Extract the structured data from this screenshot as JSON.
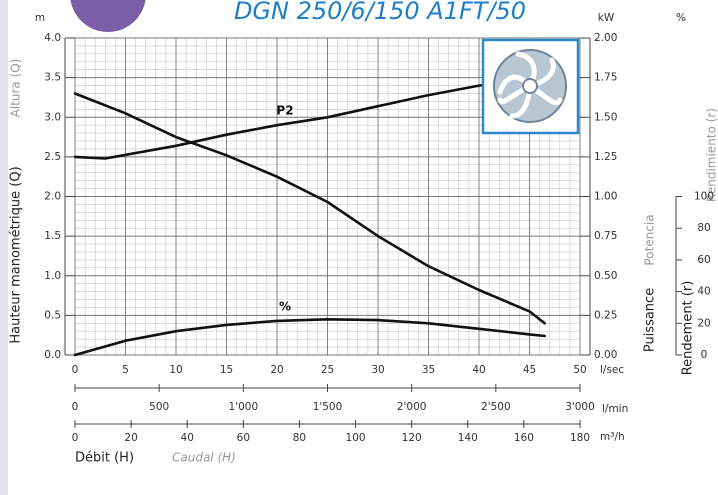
{
  "chart_data": {
    "type": "line",
    "title": "DGN 250/6/150 A1FT/50",
    "y_unit": "m",
    "y2_unit": "kW",
    "y3_unit": "%",
    "y_label": "Hauteur manométrique (Q)",
    "y_label_alt": "Altura (Q)",
    "y2_label": "Puissance",
    "y2_label_alt": "Potencia",
    "y3_label": "Rendement (r)",
    "y3_label_alt": "Rendimiento (r)",
    "x_label": "Débit (H)",
    "x_label_alt": "Caudal (H)",
    "x_unit": "l/sec",
    "x2_unit": "l/min",
    "x3_unit": "m³/h",
    "xlim": [
      0,
      50
    ],
    "xticks": [
      0,
      5,
      10,
      15,
      20,
      25,
      30,
      35,
      40,
      45,
      50
    ],
    "x2lim": [
      0,
      3000
    ],
    "x2ticks": [
      0,
      500,
      {
        "value": 1000,
        "label": "1'000"
      },
      {
        "value": 1500,
        "label": "1'500"
      },
      {
        "value": 2000,
        "label": "2'000"
      },
      {
        "value": 2500,
        "label": "2'500"
      },
      {
        "value": 3000,
        "label": "3'000"
      }
    ],
    "x3lim": [
      0,
      180
    ],
    "x3ticks": [
      0,
      20,
      40,
      60,
      80,
      100,
      120,
      140,
      160,
      180
    ],
    "ylim": [
      0,
      4
    ],
    "yticks": [
      {
        "value": 0,
        "label": "0.0"
      },
      0.5,
      {
        "value": 1,
        "label": "1.0"
      },
      1.5,
      {
        "value": 2,
        "label": "2.0"
      },
      2.5,
      {
        "value": 3,
        "label": "3.0"
      },
      3.5,
      {
        "value": 4,
        "label": "4.0"
      }
    ],
    "y2lim": [
      0,
      2
    ],
    "y2ticks": [
      {
        "value": 0,
        "label": "0.00"
      },
      0.25,
      {
        "value": 0.5,
        "label": "0.50"
      },
      0.75,
      {
        "value": 1,
        "label": "1.00"
      },
      1.25,
      {
        "value": 1.5,
        "label": "1.50"
      },
      1.75,
      {
        "value": 2,
        "label": "2.00"
      }
    ],
    "y3lim": [
      0,
      100
    ],
    "y3ticks": [
      0,
      20,
      40,
      60,
      80,
      100
    ],
    "grid": true,
    "series": [
      {
        "color": "#111111",
        "x": [
          0,
          5,
          10,
          15,
          20,
          25,
          30,
          35,
          40,
          45,
          46.5
        ],
        "values": [
          3.3,
          3.05,
          2.75,
          2.52,
          2.25,
          1.93,
          1.5,
          1.12,
          0.82,
          0.55,
          0.4
        ]
      },
      {
        "name": "P2",
        "axis": "y2",
        "color": "#111111",
        "x": [
          0,
          3,
          10,
          15,
          20,
          25,
          30,
          35,
          40,
          45,
          46.5
        ],
        "values": [
          1.25,
          1.24,
          1.32,
          1.39,
          1.45,
          1.5,
          1.57,
          1.64,
          1.7,
          1.75,
          1.76
        ]
      },
      {
        "name": "%",
        "axis": "y3",
        "color": "#111111",
        "x": [
          0,
          5,
          10,
          15,
          20,
          25,
          30,
          35,
          40,
          45,
          46.5
        ],
        "values": [
          0,
          9,
          15,
          19,
          21.5,
          22.5,
          22,
          20,
          16.5,
          13,
          12
        ]
      }
    ]
  }
}
